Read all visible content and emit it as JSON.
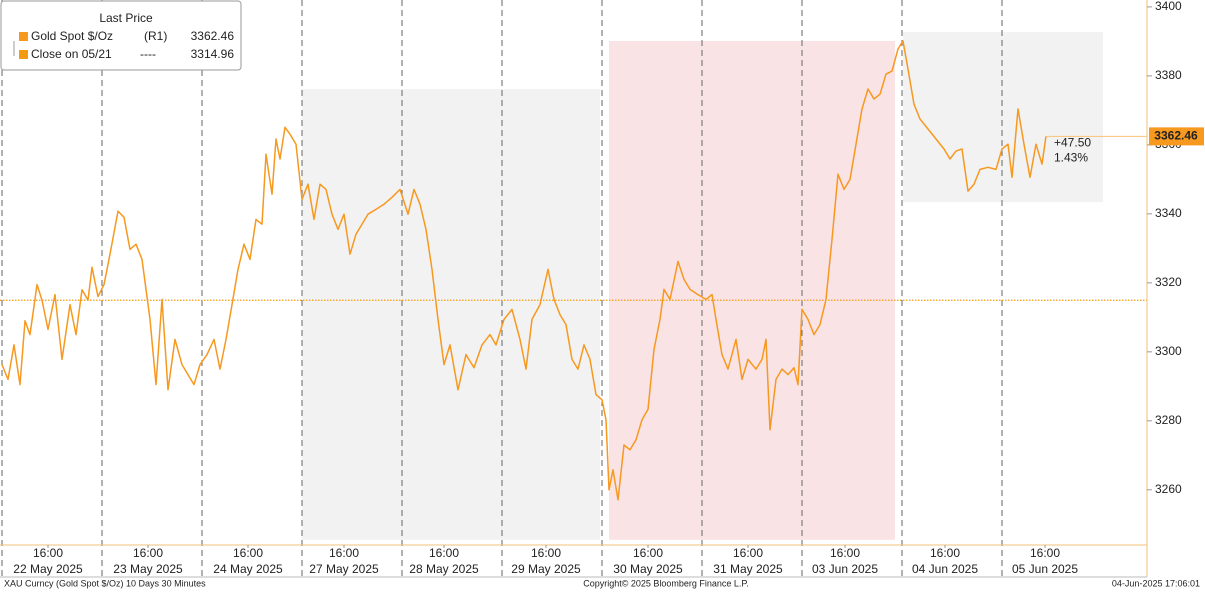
{
  "chart_data": {
    "type": "line",
    "legend_title": "Last Price",
    "x": [
      0,
      0.06,
      0.12,
      0.18,
      0.23,
      0.28,
      0.35,
      0.4,
      0.46,
      0.53,
      0.6,
      0.68,
      0.74,
      0.8,
      0.86,
      0.9,
      0.96,
      1.02,
      1.08,
      1.16,
      1.22,
      1.28,
      1.34,
      1.4,
      1.48,
      1.54,
      1.6,
      1.66,
      1.73,
      1.8,
      1.86,
      1.92,
      1.98,
      2.05,
      2.12,
      2.18,
      2.24,
      2.3,
      2.36,
      2.42,
      2.48,
      2.54,
      2.6,
      2.64,
      2.7,
      2.74,
      2.78,
      2.83,
      2.88,
      2.94,
      3.0,
      3.06,
      3.12,
      3.18,
      3.24,
      3.3,
      3.36,
      3.42,
      3.48,
      3.54,
      3.6,
      3.66,
      3.74,
      3.82,
      3.9,
      3.98,
      4.06,
      4.12,
      4.18,
      4.24,
      4.3,
      4.36,
      4.42,
      4.48,
      4.56,
      4.64,
      4.72,
      4.8,
      4.88,
      4.94,
      5.02,
      5.1,
      5.18,
      5.24,
      5.3,
      5.38,
      5.46,
      5.52,
      5.58,
      5.64,
      5.7,
      5.76,
      5.82,
      5.88,
      5.94,
      6.0,
      6.04,
      6.07,
      6.11,
      6.16,
      6.22,
      6.28,
      6.34,
      6.4,
      6.46,
      6.52,
      6.58,
      6.62,
      6.68,
      6.76,
      6.82,
      6.88,
      6.96,
      7.04,
      7.1,
      7.14,
      7.2,
      7.26,
      7.34,
      7.4,
      7.46,
      7.54,
      7.6,
      7.64,
      7.68,
      7.74,
      7.8,
      7.86,
      7.92,
      7.96,
      8.0,
      8.06,
      8.12,
      8.18,
      8.24,
      8.3,
      8.36,
      8.42,
      8.48,
      8.54,
      8.6,
      8.66,
      8.72,
      8.78,
      8.84,
      8.9,
      8.96,
      9.01,
      9.06,
      9.12,
      9.18,
      9.26,
      9.34,
      9.42,
      9.48,
      9.54,
      9.6,
      9.66,
      9.72,
      9.78,
      9.86,
      9.94,
      10.0,
      10.06,
      10.1,
      10.16,
      10.22,
      10.28,
      10.34,
      10.4,
      10.44
    ],
    "series": [
      {
        "name": "Gold Spot $/Oz",
        "axis_tag": "(R1)",
        "color": "#f7981f",
        "values": [
          3296.3,
          3292,
          3302,
          3290.5,
          3309,
          3305,
          3319.5,
          3315,
          3306.5,
          3316.6,
          3297.8,
          3313.7,
          3305,
          3318,
          3315,
          3324.5,
          3316,
          3319.5,
          3328.3,
          3340.8,
          3339,
          3329.7,
          3331.2,
          3326.8,
          3309.4,
          3290.5,
          3315.2,
          3289,
          3303.6,
          3296.3,
          3293.4,
          3290.5,
          3296.3,
          3299.2,
          3303.6,
          3295,
          3303.6,
          3313.7,
          3323.9,
          3331.2,
          3326.8,
          3338.4,
          3337,
          3357.3,
          3345.7,
          3361.7,
          3355.9,
          3365.1,
          3363.1,
          3360.2,
          3344.2,
          3348.6,
          3338.4,
          3348.6,
          3347.1,
          3339.9,
          3335.5,
          3339.9,
          3328.3,
          3334.1,
          3337,
          3339.9,
          3341.3,
          3342.8,
          3344.8,
          3347.1,
          3339.9,
          3347.1,
          3342.8,
          3335.5,
          3323.9,
          3309.4,
          3296.3,
          3302,
          3289,
          3299.2,
          3295.4,
          3302,
          3305,
          3302,
          3309.4,
          3312.3,
          3303.6,
          3295,
          3309.4,
          3313.7,
          3323.9,
          3315.2,
          3310.8,
          3307.9,
          3297.8,
          3295,
          3302,
          3297.8,
          3287.6,
          3286.1,
          3280.3,
          3260,
          3265.8,
          3257.1,
          3273,
          3271.6,
          3274.5,
          3280.3,
          3283.3,
          3300.7,
          3309.4,
          3318.1,
          3315.2,
          3326.2,
          3321,
          3318.1,
          3316.6,
          3315.2,
          3316.6,
          3309.4,
          3299.2,
          3295,
          3303.6,
          3292,
          3297.8,
          3295,
          3297.8,
          3303.6,
          3277.4,
          3292,
          3295,
          3293.4,
          3295.4,
          3290.5,
          3312.3,
          3309.4,
          3305,
          3307.9,
          3315.2,
          3332.6,
          3351.5,
          3347.1,
          3350,
          3360.2,
          3370.4,
          3376.2,
          3373.3,
          3374.7,
          3380.5,
          3381.4,
          3387.8,
          3390.1,
          3382,
          3371.8,
          3367.5,
          3364.6,
          3361.7,
          3358.8,
          3355.9,
          3358.2,
          3358.8,
          3346.6,
          3348.6,
          3352.9,
          3353.5,
          3352.9,
          3358.8,
          3360.2,
          3350.6,
          3370.4,
          3360.2,
          3350.6,
          3360.2,
          3354.4,
          3362.46
        ]
      }
    ],
    "last_price": 3362.46,
    "reference_line": {
      "name": "Close on 05/21",
      "style_text": "----",
      "value": 3314.96,
      "color": "#f39c12"
    },
    "change_label": "+47.50",
    "change_pct_label": "1.43%",
    "regions": [
      {
        "x0": 3.0,
        "x1": 5.98,
        "y0": 3245.5,
        "y1": 3376.2,
        "color": "#f2f2f2"
      },
      {
        "x0": 6.07,
        "x1": 8.93,
        "y0": 3245.5,
        "y1": 3390.1,
        "color": "#f9e3e4"
      },
      {
        "x0": 9.01,
        "x1": 11.01,
        "y0": 3343.4,
        "y1": 3392.7,
        "color": "#f2f2f2"
      }
    ],
    "xlim": [
      -0.02,
      11.45
    ],
    "ylim": [
      3244,
      3402
    ],
    "yticks": [
      3260,
      3280,
      3300,
      3320,
      3340,
      3360,
      3380,
      3400
    ],
    "xgrid": [
      0,
      1,
      2,
      3,
      4,
      5,
      6,
      7,
      8,
      9,
      10
    ],
    "xticks": [
      {
        "value": 0.46,
        "label": "16:00"
      },
      {
        "value": 1.46,
        "label": "16:00"
      },
      {
        "value": 2.46,
        "label": "16:00"
      },
      {
        "value": 3.42,
        "label": "16:00"
      },
      {
        "value": 4.42,
        "label": "16:00"
      },
      {
        "value": 5.44,
        "label": "16:00"
      },
      {
        "value": 6.46,
        "label": "16:00"
      },
      {
        "value": 7.46,
        "label": "16:00"
      },
      {
        "value": 8.43,
        "label": "16:00"
      },
      {
        "value": 9.43,
        "label": "16:00"
      },
      {
        "value": 10.43,
        "label": "16:00"
      }
    ],
    "xtick_dates": [
      "22 May 2025",
      "23 May 2025",
      "24 May 2025",
      "27 May 2025",
      "28 May 2025",
      "29 May 2025",
      "30 May 2025",
      "31 May 2025",
      "03 Jun 2025",
      "04 Jun 2025",
      "05 Jun 2025"
    ],
    "footer_left": "XAU Curncy (Gold Spot  $/Oz) 10 Days 30 Minutes",
    "footer_center": "Copyright© 2025 Bloomberg Finance L.P.",
    "footer_right": "04-Jun-2025 17:06:01"
  }
}
